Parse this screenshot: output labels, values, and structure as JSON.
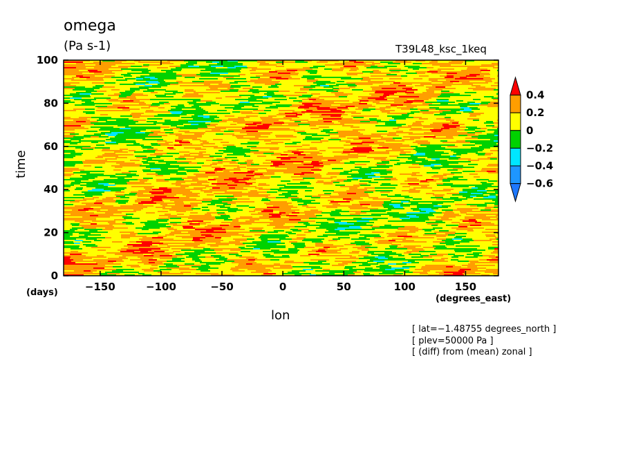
{
  "chart_data": {
    "type": "heatmap",
    "title": "omega",
    "units": "(Pa s-1)",
    "run_label": "T39L48_ksc_1keq",
    "xlabel": "lon",
    "x_units": "(degrees_east)",
    "ylabel": "time",
    "y_units": "(days)",
    "xlim": [
      -180,
      177
    ],
    "ylim": [
      0,
      100
    ],
    "x_ticks": [
      -150,
      -100,
      -50,
      0,
      50,
      100,
      150
    ],
    "x_tick_labels": [
      "−150",
      "−100",
      "−50",
      "0",
      "50",
      "100",
      "150"
    ],
    "y_ticks": [
      0,
      20,
      40,
      60,
      80,
      100
    ],
    "y_tick_labels": [
      "0",
      "20",
      "40",
      "60",
      "80",
      "100"
    ],
    "colorbar": {
      "levels": [
        -0.6,
        -0.4,
        -0.2,
        0,
        0.2,
        0.4
      ],
      "level_labels": [
        "−0.6",
        "−0.4",
        "−0.2",
        "0",
        "0.2",
        "0.4"
      ],
      "colors": [
        "#1e78ff",
        "#1e96ff",
        "#00e6ff",
        "#00d200",
        "#ffff00",
        "#ff9e00",
        "#ff0000"
      ]
    },
    "annotations": [
      "[ lat=−1.48755 degrees_north ]",
      "[ plev=50000 Pa ]",
      "[ (diff) from (mean) zonal ]"
    ],
    "dominant_values": "mostly 0 to 0.2 with bands of −0.2 and 0.2 to 0.4, scattered patches below −0.2"
  }
}
